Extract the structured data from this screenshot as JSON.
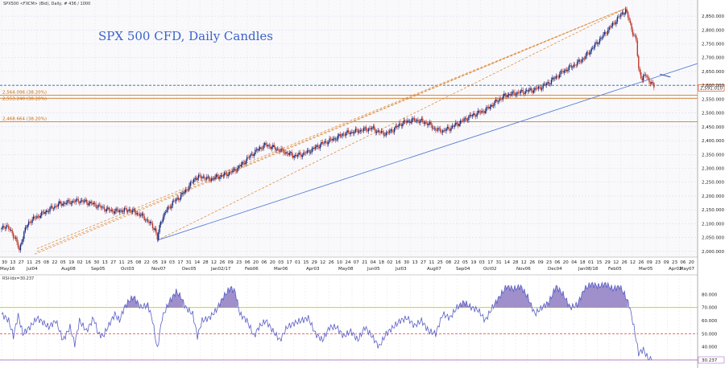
{
  "header_text": "SPX500 <FXCM> (Bid), Daily, # 436 / 1000",
  "chart_data": [
    {
      "type": "candlestick",
      "title": "SPX 500 CFD, Daily Candles",
      "xlabel": "",
      "ylabel": "",
      "ylim": [
        1985,
        2885
      ],
      "y_ticks": [
        "2,850.000",
        "2,800.000",
        "2,750.000",
        "2,700.000",
        "2,650.000",
        "2,600.000",
        "2,550.000",
        "2,500.000",
        "2,450.000",
        "2,400.000",
        "2,350.000",
        "2,300.000",
        "2,250.000",
        "2,200.000",
        "2,150.000",
        "2,100.000",
        "2,050.000",
        "2,000.000"
      ],
      "x_day_labels": [
        "30",
        "13",
        "27",
        "11",
        "25",
        "08",
        "22",
        "05",
        "19",
        "02",
        "16",
        "30",
        "13",
        "27",
        "11",
        "25",
        "08",
        "22",
        "05",
        "19",
        "03",
        "17",
        "31",
        "14",
        "28",
        "12",
        "26",
        "09",
        "23",
        "06",
        "20",
        "06",
        "20",
        "03",
        "17",
        "01",
        "15",
        "29",
        "12",
        "26",
        "10",
        "24",
        "07",
        "21",
        "04",
        "18",
        "02",
        "16",
        "30",
        "13",
        "27",
        "11",
        "25",
        "08",
        "22",
        "05",
        "19",
        "03",
        "17",
        "31",
        "14",
        "28",
        "12",
        "26",
        "09",
        "23",
        "06",
        "20",
        "04",
        "18",
        "01",
        "15",
        "29",
        "12",
        "26",
        "12",
        "26",
        "09",
        "23",
        "09",
        "23",
        "06",
        "20"
      ],
      "x_month_labels": [
        "May16",
        "Jul04",
        "Aug08",
        "Sep05",
        "Oct03",
        "Nov07",
        "Dec05",
        "Jan02/17",
        "Feb06",
        "Mar06",
        "Apr03",
        "May08",
        "Jun05",
        "Jul03",
        "Aug07",
        "Sep04",
        "Oct02",
        "Nov06",
        "Dec04",
        "Jan08/18",
        "Feb05",
        "Mar05",
        "Apr02",
        "May07"
      ],
      "series": [
        {
          "values": [
            [
              0,
              2080
            ],
            [
              4,
              2095
            ],
            [
              8,
              2070
            ],
            [
              12,
              2045
            ],
            [
              15,
              2000
            ],
            [
              17,
              2040
            ],
            [
              20,
              2080
            ],
            [
              24,
              2110
            ],
            [
              30,
              2125
            ],
            [
              36,
              2140
            ],
            [
              42,
              2155
            ],
            [
              48,
              2170
            ],
            [
              54,
              2175
            ],
            [
              60,
              2180
            ],
            [
              66,
              2183
            ],
            [
              72,
              2178
            ],
            [
              78,
              2170
            ],
            [
              84,
              2160
            ],
            [
              90,
              2150
            ],
            [
              96,
              2145
            ],
            [
              102,
              2148
            ],
            [
              108,
              2150
            ],
            [
              114,
              2140
            ],
            [
              120,
              2125
            ],
            [
              126,
              2100
            ],
            [
              130,
              2080
            ],
            [
              132,
              2045
            ],
            [
              135,
              2110
            ],
            [
              140,
              2150
            ],
            [
              146,
              2180
            ],
            [
              152,
              2200
            ],
            [
              158,
              2230
            ],
            [
              164,
              2265
            ],
            [
              170,
              2270
            ],
            [
              176,
              2260
            ],
            [
              182,
              2268
            ],
            [
              188,
              2275
            ],
            [
              194,
              2285
            ],
            [
              200,
              2300
            ],
            [
              206,
              2325
            ],
            [
              212,
              2350
            ],
            [
              218,
              2370
            ],
            [
              224,
              2385
            ],
            [
              230,
              2375
            ],
            [
              236,
              2365
            ],
            [
              242,
              2355
            ],
            [
              248,
              2345
            ],
            [
              254,
              2350
            ],
            [
              260,
              2360
            ],
            [
              266,
              2375
            ],
            [
              272,
              2390
            ],
            [
              278,
              2400
            ],
            [
              284,
              2410
            ],
            [
              290,
              2425
            ],
            [
              296,
              2430
            ],
            [
              302,
              2435
            ],
            [
              308,
              2440
            ],
            [
              314,
              2445
            ],
            [
              320,
              2430
            ],
            [
              326,
              2425
            ],
            [
              332,
              2440
            ],
            [
              338,
              2460
            ],
            [
              344,
              2470
            ],
            [
              350,
              2475
            ],
            [
              356,
              2470
            ],
            [
              362,
              2460
            ],
            [
              368,
              2440
            ],
            [
              374,
              2435
            ],
            [
              380,
              2445
            ],
            [
              386,
              2460
            ],
            [
              392,
              2475
            ],
            [
              398,
              2490
            ],
            [
              404,
              2500
            ],
            [
              410,
              2510
            ],
            [
              416,
              2530
            ],
            [
              422,
              2550
            ],
            [
              428,
              2565
            ],
            [
              434,
              2570
            ],
            [
              440,
              2575
            ],
            [
              446,
              2580
            ],
            [
              452,
              2585
            ],
            [
              458,
              2595
            ],
            [
              464,
              2610
            ],
            [
              470,
              2630
            ],
            [
              476,
              2650
            ],
            [
              482,
              2665
            ],
            [
              488,
              2680
            ],
            [
              494,
              2700
            ],
            [
              500,
              2730
            ],
            [
              506,
              2760
            ],
            [
              512,
              2790
            ],
            [
              518,
              2820
            ],
            [
              522,
              2840
            ],
            [
              526,
              2860
            ],
            [
              529,
              2870
            ],
            [
              532,
              2835
            ],
            [
              535,
              2790
            ],
            [
              538,
              2760
            ],
            [
              540,
              2660
            ],
            [
              543,
              2620
            ],
            [
              546,
              2640
            ],
            [
              549,
              2615
            ],
            [
              552,
              2600
            ],
            [
              554,
              2590
            ]
          ]
        },
        {
          "name": "RSI-Idx",
          "ylim": [
            30,
            90
          ],
          "y_ticks": [
            "80.000",
            "70.000",
            "60.000",
            "50.000",
            "40.000",
            "30.000"
          ],
          "values": [
            [
              0,
              65
            ],
            [
              6,
              60
            ],
            [
              10,
              48
            ],
            [
              14,
              64
            ],
            [
              18,
              50
            ],
            [
              24,
              55
            ],
            [
              30,
              62
            ],
            [
              36,
              58
            ],
            [
              40,
              55
            ],
            [
              46,
              60
            ],
            [
              52,
              45
            ],
            [
              58,
              55
            ],
            [
              62,
              42
            ],
            [
              66,
              60
            ],
            [
              72,
              52
            ],
            [
              78,
              62
            ],
            [
              82,
              50
            ],
            [
              86,
              48
            ],
            [
              90,
              55
            ],
            [
              96,
              65
            ],
            [
              100,
              60
            ],
            [
              104,
              70
            ],
            [
              108,
              75
            ],
            [
              112,
              78
            ],
            [
              118,
              70
            ],
            [
              124,
              72
            ],
            [
              128,
              60
            ],
            [
              132,
              38
            ],
            [
              136,
              62
            ],
            [
              142,
              74
            ],
            [
              148,
              82
            ],
            [
              152,
              78
            ],
            [
              156,
              70
            ],
            [
              162,
              65
            ],
            [
              166,
              48
            ],
            [
              170,
              60
            ],
            [
              176,
              62
            ],
            [
              182,
              68
            ],
            [
              188,
              78
            ],
            [
              194,
              85
            ],
            [
              198,
              82
            ],
            [
              202,
              65
            ],
            [
              208,
              60
            ],
            [
              214,
              48
            ],
            [
              218,
              55
            ],
            [
              224,
              60
            ],
            [
              230,
              52
            ],
            [
              236,
              45
            ],
            [
              242,
              55
            ],
            [
              248,
              58
            ],
            [
              254,
              60
            ],
            [
              260,
              62
            ],
            [
              266,
              50
            ],
            [
              272,
              45
            ],
            [
              278,
              55
            ],
            [
              284,
              55
            ],
            [
              290,
              48
            ],
            [
              296,
              52
            ],
            [
              302,
              45
            ],
            [
              308,
              55
            ],
            [
              314,
              48
            ],
            [
              320,
              40
            ],
            [
              326,
              50
            ],
            [
              332,
              55
            ],
            [
              338,
              60
            ],
            [
              344,
              62
            ],
            [
              350,
              56
            ],
            [
              356,
              60
            ],
            [
              362,
              52
            ],
            [
              368,
              50
            ],
            [
              374,
              65
            ],
            [
              380,
              62
            ],
            [
              386,
              70
            ],
            [
              392,
              74
            ],
            [
              398,
              70
            ],
            [
              404,
              68
            ],
            [
              410,
              60
            ],
            [
              416,
              70
            ],
            [
              422,
              78
            ],
            [
              428,
              86
            ],
            [
              434,
              84
            ],
            [
              440,
              86
            ],
            [
              446,
              78
            ],
            [
              452,
              65
            ],
            [
              458,
              70
            ],
            [
              464,
              74
            ],
            [
              470,
              86
            ],
            [
              476,
              80
            ],
            [
              482,
              70
            ],
            [
              488,
              72
            ],
            [
              494,
              84
            ],
            [
              500,
              88
            ],
            [
              506,
              86
            ],
            [
              512,
              88
            ],
            [
              518,
              84
            ],
            [
              524,
              86
            ],
            [
              528,
              80
            ],
            [
              532,
              72
            ],
            [
              536,
              55
            ],
            [
              540,
              35
            ],
            [
              544,
              38
            ],
            [
              548,
              31
            ],
            [
              552,
              30
            ]
          ]
        }
      ],
      "legend": "none",
      "grid": true,
      "horizontal_lines": [
        {
          "label": "2,564.096 (38.20%)",
          "value": 2564.096,
          "color": "#cc6600"
        },
        {
          "label": "2,553.240 (38.20%)",
          "value": 2553.24,
          "color": "#cc6600"
        },
        {
          "label": "2,468.664 (38.20%)",
          "value": 2468.664,
          "color": "#cc6600"
        },
        {
          "value": 2600,
          "color": "#1f6f8b",
          "style": "dashed"
        }
      ],
      "current_value_label": "2,591.010",
      "rsi_label": "RSI-Idx=30.237",
      "rsi_current_label": "30.237"
    }
  ]
}
